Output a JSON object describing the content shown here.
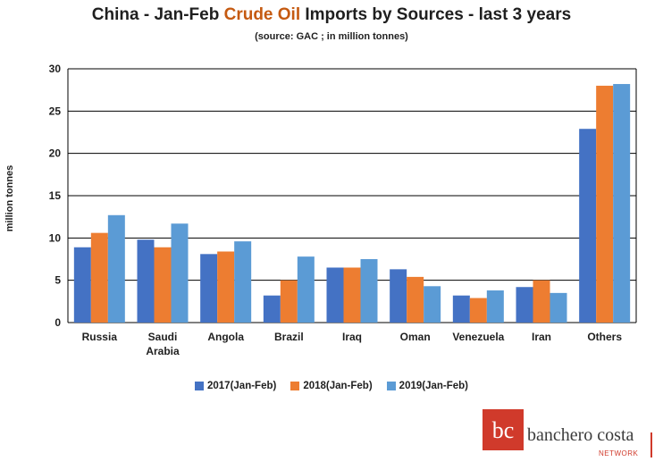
{
  "title": {
    "part1": "China - Jan-Feb ",
    "highlight": "Crude Oil",
    "part2": " Imports by Sources - last 3 years"
  },
  "subtitle": "(source: GAC ; in million tonnes)",
  "colors": {
    "title_highlight": "#c55a11",
    "grid": "#000000",
    "logo_red": "#d03a2b"
  },
  "chart_data": {
    "type": "bar",
    "title": "China - Jan-Feb Crude Oil Imports by Sources - last 3 years",
    "subtitle": "(source: GAC ; in million tonnes)",
    "xlabel": "",
    "ylabel": "million tonnes",
    "ylim": [
      0,
      30
    ],
    "yticks": [
      0,
      5,
      10,
      15,
      20,
      25,
      30
    ],
    "grid": true,
    "legend_position": "bottom",
    "categories": [
      [
        "Russia"
      ],
      [
        "Saudi",
        "Arabia"
      ],
      [
        "Angola"
      ],
      [
        "Brazil"
      ],
      [
        "Iraq"
      ],
      [
        "Oman"
      ],
      [
        "Venezuela"
      ],
      [
        "Iran"
      ],
      [
        "Others"
      ]
    ],
    "series": [
      {
        "name": "2017(Jan-Feb)",
        "color": "#4472c4",
        "values": [
          8.9,
          9.8,
          8.1,
          3.2,
          6.5,
          6.3,
          3.2,
          4.2,
          22.9
        ]
      },
      {
        "name": "2018(Jan-Feb)",
        "color": "#ed7d31",
        "values": [
          10.6,
          8.9,
          8.4,
          5.0,
          6.5,
          5.4,
          2.9,
          5.0,
          28.0
        ]
      },
      {
        "name": "2019(Jan-Feb)",
        "color": "#5b9bd5",
        "values": [
          12.7,
          11.7,
          9.6,
          7.8,
          7.5,
          4.3,
          3.8,
          3.5,
          28.2
        ]
      }
    ]
  },
  "logo": {
    "mark": "bc",
    "text": "banchero costa",
    "sub": "NETWORK"
  }
}
